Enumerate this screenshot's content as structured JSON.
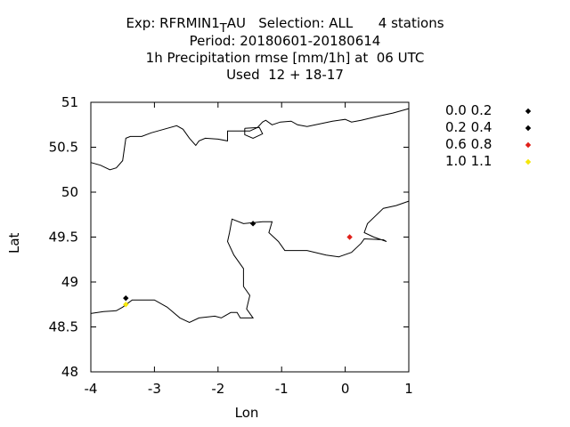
{
  "title": {
    "line1_prefix": "Exp: RFRMIN1",
    "line1_sub": "T",
    "line1_suffix": "AU   Selection: ALL      4 stations",
    "line2": "Period: 20180601-20180614",
    "line3": "1h Precipitation rmse [mm/1h] at  06 UTC",
    "line4": "Used  12 + 18-17"
  },
  "chart_data": {
    "type": "scatter",
    "xlabel": "Lon",
    "ylabel": "Lat",
    "xlim": [
      -4,
      1
    ],
    "ylim": [
      48,
      51
    ],
    "x_ticks": [
      "-4",
      "-3",
      "-2",
      "-1",
      "0",
      "1"
    ],
    "y_ticks": [
      "48",
      "48.5",
      "49",
      "49.5",
      "50",
      "50.5",
      "51"
    ],
    "grid": false,
    "legend_position": "right",
    "series": [
      {
        "name": "0.0 0.2",
        "color": "#000000",
        "points": [
          [
            -1.45,
            49.65
          ]
        ]
      },
      {
        "name": "0.2 0.4",
        "color": "#000000",
        "points": [
          [
            -3.45,
            48.82
          ]
        ]
      },
      {
        "name": "0.6 0.8",
        "color": "#e0201a",
        "points": [
          [
            0.07,
            49.5
          ]
        ]
      },
      {
        "name": "1.0 1.1",
        "color": "#f5e60a",
        "points": [
          [
            -3.45,
            48.75
          ]
        ]
      }
    ],
    "coastlines": [
      [
        [
          -4.0,
          50.33
        ],
        [
          -3.85,
          50.3
        ],
        [
          -3.7,
          50.25
        ],
        [
          -3.6,
          50.27
        ],
        [
          -3.5,
          50.35
        ],
        [
          -3.45,
          50.6
        ],
        [
          -3.38,
          50.62
        ],
        [
          -3.2,
          50.62
        ],
        [
          -3.05,
          50.66
        ],
        [
          -2.9,
          50.69
        ],
        [
          -2.65,
          50.74
        ],
        [
          -2.55,
          50.7
        ],
        [
          -2.45,
          50.6
        ],
        [
          -2.35,
          50.52
        ],
        [
          -2.3,
          50.57
        ],
        [
          -2.2,
          50.6
        ],
        [
          -2.0,
          50.59
        ],
        [
          -1.85,
          50.57
        ],
        [
          -1.85,
          50.68
        ],
        [
          -1.5,
          50.68
        ],
        [
          -1.38,
          50.72
        ],
        [
          -1.3,
          50.78
        ],
        [
          -1.25,
          50.8
        ],
        [
          -1.15,
          50.75
        ],
        [
          -1.02,
          50.78
        ],
        [
          -0.85,
          50.79
        ],
        [
          -0.75,
          50.75
        ],
        [
          -0.6,
          50.73
        ],
        [
          -0.2,
          50.79
        ],
        [
          0.0,
          50.81
        ],
        [
          0.1,
          50.78
        ],
        [
          0.25,
          50.8
        ],
        [
          0.55,
          50.85
        ],
        [
          0.75,
          50.88
        ],
        [
          1.0,
          50.93
        ]
      ],
      [
        [
          -1.58,
          50.71
        ],
        [
          -1.35,
          50.72
        ],
        [
          -1.3,
          50.65
        ],
        [
          -1.45,
          50.6
        ],
        [
          -1.58,
          50.64
        ],
        [
          -1.58,
          50.71
        ]
      ],
      [
        [
          -4.0,
          48.65
        ],
        [
          -3.8,
          48.67
        ],
        [
          -3.6,
          48.68
        ],
        [
          -3.5,
          48.72
        ],
        [
          -3.35,
          48.8
        ],
        [
          -3.2,
          48.8
        ],
        [
          -3.0,
          48.8
        ],
        [
          -2.8,
          48.72
        ],
        [
          -2.6,
          48.6
        ],
        [
          -2.45,
          48.55
        ],
        [
          -2.3,
          48.6
        ],
        [
          -2.05,
          48.62
        ],
        [
          -1.95,
          48.6
        ],
        [
          -1.8,
          48.66
        ],
        [
          -1.7,
          48.66
        ],
        [
          -1.65,
          48.6
        ],
        [
          -1.45,
          48.6
        ],
        [
          -1.55,
          48.7
        ],
        [
          -1.5,
          48.85
        ],
        [
          -1.6,
          48.95
        ],
        [
          -1.6,
          49.15
        ],
        [
          -1.75,
          49.3
        ],
        [
          -1.85,
          49.45
        ],
        [
          -1.82,
          49.55
        ],
        [
          -1.78,
          49.7
        ],
        [
          -1.6,
          49.65
        ],
        [
          -1.3,
          49.67
        ],
        [
          -1.15,
          49.67
        ],
        [
          -1.2,
          49.55
        ],
        [
          -1.05,
          49.45
        ],
        [
          -0.95,
          49.35
        ],
        [
          -0.6,
          49.35
        ],
        [
          -0.3,
          49.3
        ],
        [
          -0.1,
          49.28
        ],
        [
          0.1,
          49.33
        ],
        [
          0.25,
          49.43
        ],
        [
          0.3,
          49.48
        ],
        [
          0.6,
          49.47
        ],
        [
          0.65,
          49.45
        ],
        [
          0.45,
          49.5
        ],
        [
          0.3,
          49.55
        ],
        [
          0.35,
          49.65
        ],
        [
          0.6,
          49.82
        ],
        [
          0.8,
          49.85
        ],
        [
          1.0,
          49.9
        ]
      ]
    ]
  }
}
